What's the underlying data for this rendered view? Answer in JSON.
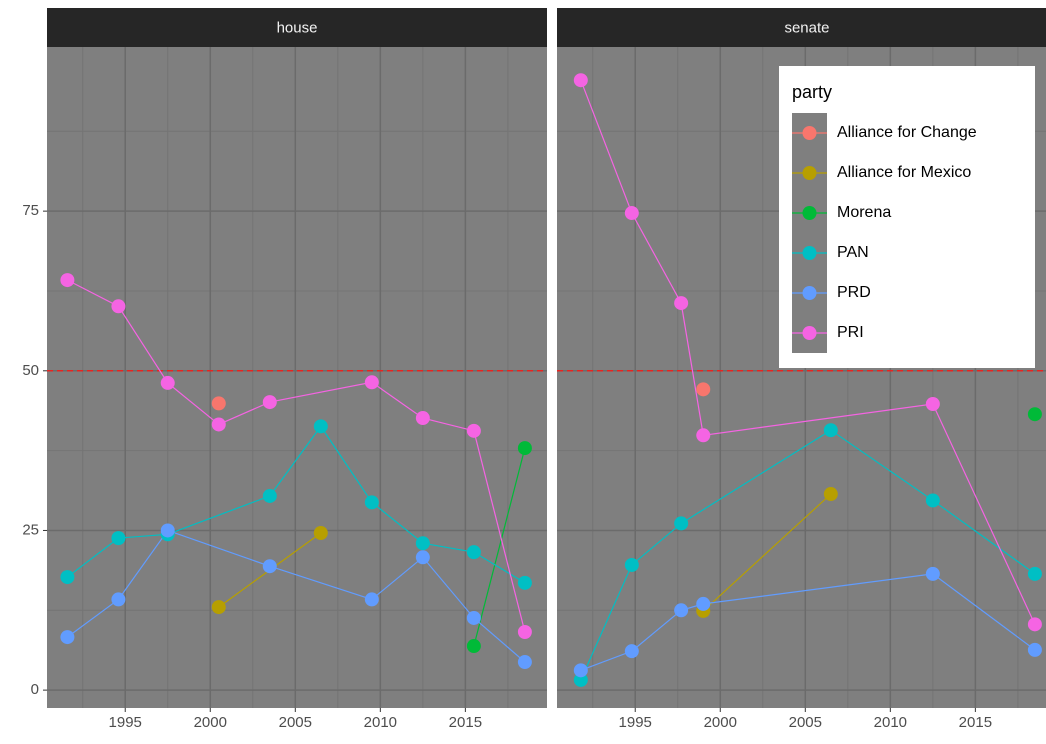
{
  "chart_data": [
    {
      "type": "line",
      "title": "house",
      "xlim": [
        1990.4,
        2019.8
      ],
      "xticks": [
        1995,
        2000,
        2005,
        2010,
        2015
      ],
      "xminor": [
        1992.5,
        1997.5,
        2002.5,
        2007.5,
        2012.5,
        2017.5
      ],
      "ylim": [
        -2.8,
        100.7
      ],
      "yticks": [
        0,
        25,
        50,
        75
      ],
      "yminor": [
        12.5,
        37.5,
        62.5,
        87.5
      ],
      "grid": true,
      "hline": {
        "value": 50,
        "color": "#e8231f"
      },
      "series": [
        {
          "name": "Alliance for Change",
          "color": "#F8766D",
          "x": [
            2000.5
          ],
          "values": [
            44.9
          ]
        },
        {
          "name": "Alliance for Mexico",
          "color": "#B79F00",
          "x": [
            2000.5,
            2006.5
          ],
          "values": [
            13.0,
            24.6
          ]
        },
        {
          "name": "Morena",
          "color": "#00BA38",
          "x": [
            2015.5,
            2018.5
          ],
          "values": [
            6.9,
            37.9
          ]
        },
        {
          "name": "PAN",
          "color": "#00BFC4",
          "x": [
            1991.6,
            1994.6,
            1997.5,
            2003.5,
            2006.5,
            2009.5,
            2012.5,
            2015.5,
            2018.5
          ],
          "values": [
            17.7,
            23.8,
            24.4,
            30.4,
            41.3,
            29.4,
            23.0,
            21.6,
            16.8
          ]
        },
        {
          "name": "PRD",
          "color": "#619CFF",
          "x": [
            1991.6,
            1994.6,
            1997.5,
            2003.5,
            2009.5,
            2012.5,
            2015.5,
            2018.5
          ],
          "values": [
            8.3,
            14.2,
            25.0,
            19.4,
            14.2,
            20.8,
            11.3,
            4.4
          ]
        },
        {
          "name": "PRI",
          "color": "#F564E3",
          "x": [
            1991.6,
            1994.6,
            1997.5,
            2000.5,
            2003.5,
            2009.5,
            2012.5,
            2015.5,
            2018.5
          ],
          "values": [
            64.2,
            60.1,
            48.1,
            41.6,
            45.1,
            48.2,
            42.6,
            40.6,
            9.1
          ]
        }
      ]
    },
    {
      "type": "line",
      "title": "senate",
      "xlim": [
        1990.4,
        2019.8
      ],
      "xticks": [
        1995,
        2000,
        2005,
        2010,
        2015
      ],
      "xminor": [
        1992.5,
        1997.5,
        2002.5,
        2007.5,
        2012.5,
        2017.5
      ],
      "ylim": [
        -2.8,
        100.7
      ],
      "yticks": [
        0,
        25,
        50,
        75
      ],
      "yminor": [
        12.5,
        37.5,
        62.5,
        87.5
      ],
      "grid": true,
      "hline": {
        "value": 50,
        "color": "#e8231f"
      },
      "legend": {
        "title": "party",
        "position": "top-right"
      },
      "series": [
        {
          "name": "Alliance for Change",
          "color": "#F8766D",
          "x": [
            1999.0
          ],
          "values": [
            47.1
          ]
        },
        {
          "name": "Alliance for Mexico",
          "color": "#B79F00",
          "x": [
            1999.0,
            2006.5
          ],
          "values": [
            12.4,
            30.7
          ]
        },
        {
          "name": "Morena",
          "color": "#00BA38",
          "x": [
            2018.5
          ],
          "values": [
            43.2
          ]
        },
        {
          "name": "PAN",
          "color": "#00BFC4",
          "x": [
            1991.8,
            1994.8,
            1997.7,
            2006.5,
            2012.5,
            2018.5
          ],
          "values": [
            1.6,
            19.6,
            26.1,
            40.7,
            29.7,
            18.2
          ]
        },
        {
          "name": "PRD",
          "color": "#619CFF",
          "x": [
            1991.8,
            1994.8,
            1997.7,
            1999.0,
            2012.5,
            2018.5
          ],
          "values": [
            3.1,
            6.1,
            12.5,
            13.5,
            18.2,
            6.3
          ]
        },
        {
          "name": "PRI",
          "color": "#F564E3",
          "x": [
            1991.8,
            1994.8,
            1997.7,
            1999.0,
            2012.5,
            2018.5
          ],
          "values": [
            95.5,
            74.7,
            60.6,
            39.9,
            44.8,
            10.3
          ]
        }
      ]
    }
  ]
}
